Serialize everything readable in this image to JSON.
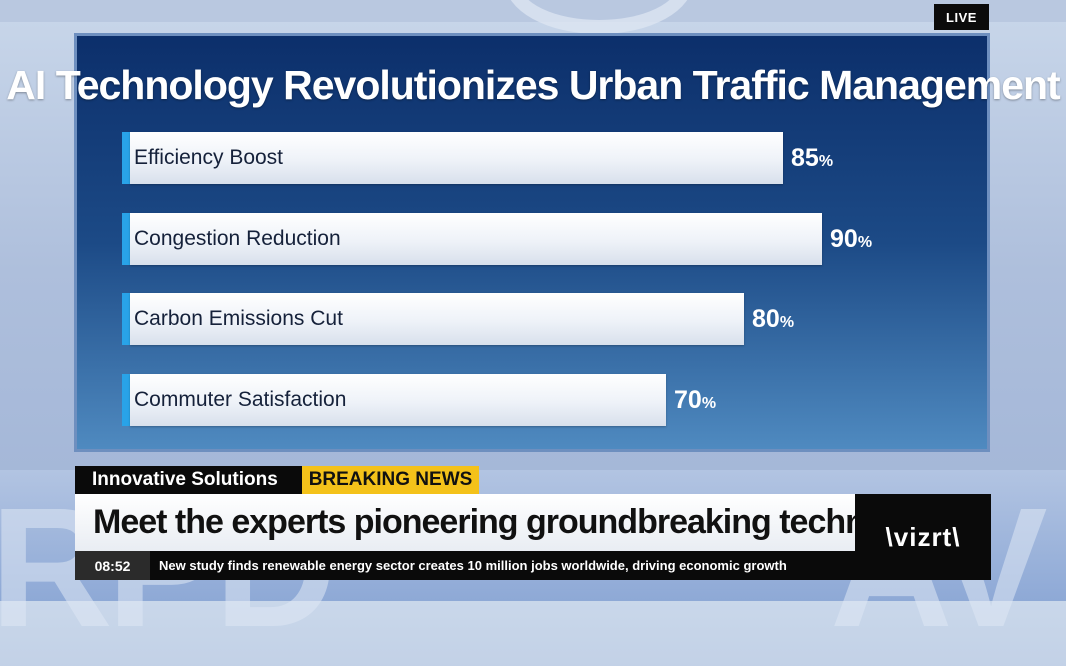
{
  "broadcast": {
    "live_label": "LIVE",
    "topic_tag": "Innovative Solutions",
    "breaking_tag": "BREAKING NEWS",
    "headline": "Meet the experts pioneering groundbreaking techniques",
    "ticker_time": "08:52",
    "ticker_text": "New study finds renewable energy sector creates 10 million jobs worldwide, driving economic growth",
    "logo_text": "\\vizrt\\",
    "colors": {
      "accent_bar": "#29a3e8",
      "breaking": "#f4c21a",
      "panel_top": "#0c2f6b",
      "panel_bottom": "#4f8ac0"
    }
  },
  "chart_data": {
    "type": "bar",
    "orientation": "horizontal",
    "title": "AI Technology Revolutionizes Urban Traffic Management",
    "categories": [
      "Efficiency Boost",
      "Congestion Reduction",
      "Carbon Emissions Cut",
      "Commuter Satisfaction"
    ],
    "values": [
      85,
      90,
      80,
      70
    ],
    "unit": "%",
    "xlim": [
      0,
      100
    ],
    "grid": false
  }
}
